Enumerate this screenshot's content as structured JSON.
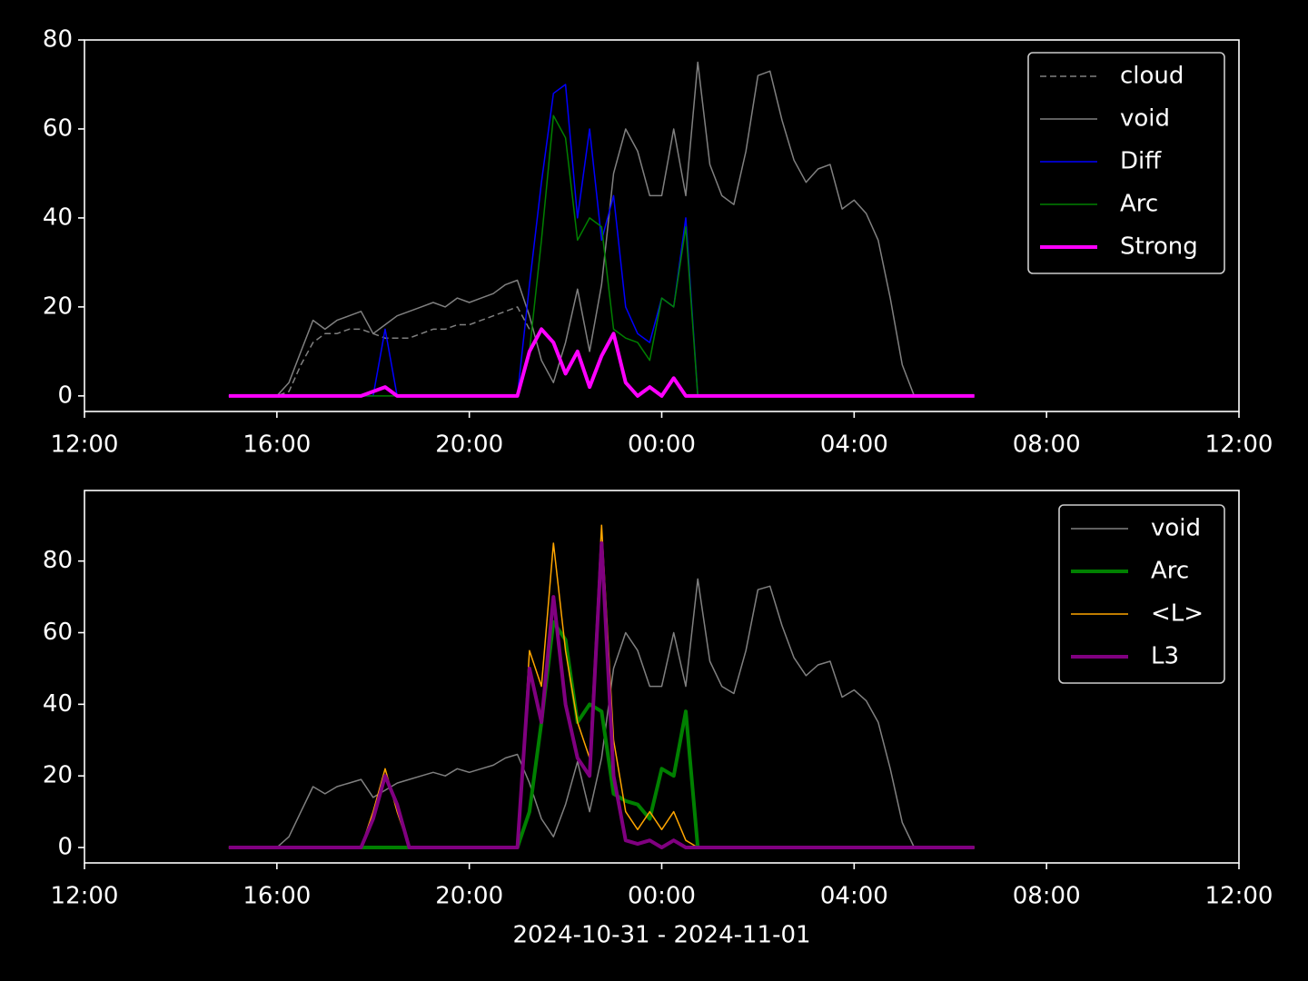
{
  "chart_data": [
    {
      "type": "line",
      "x": [
        3,
        3.25,
        3.5,
        3.75,
        4,
        4.25,
        4.5,
        4.75,
        5,
        5.25,
        5.5,
        5.75,
        6,
        6.25,
        6.5,
        6.75,
        7,
        7.25,
        7.5,
        7.75,
        8,
        8.25,
        8.5,
        8.75,
        9,
        9.25,
        9.5,
        9.75,
        10,
        10.25,
        10.5,
        10.75,
        11,
        11.25,
        11.5,
        11.75,
        12,
        12.25,
        12.5,
        12.75,
        13,
        13.25,
        13.5,
        13.75,
        14,
        14.25,
        14.5,
        14.75,
        15,
        15.25,
        15.5,
        15.75,
        16,
        16.25,
        16.5,
        16.75,
        17,
        17.25,
        17.5,
        17.75,
        18,
        18.25,
        18.5
      ],
      "xlim": [
        0,
        24
      ],
      "xticks": [
        {
          "value": 0,
          "label": "12:00"
        },
        {
          "value": 4,
          "label": "16:00"
        },
        {
          "value": 8,
          "label": "20:00"
        },
        {
          "value": 12,
          "label": "00:00"
        },
        {
          "value": 16,
          "label": "04:00"
        },
        {
          "value": 20,
          "label": "08:00"
        },
        {
          "value": 24,
          "label": "12:00"
        }
      ],
      "ylim": [
        -3.5,
        80
      ],
      "yticks": [
        0,
        20,
        40,
        60,
        80
      ],
      "legend": "upper right",
      "series": [
        {
          "name": "cloud",
          "color": "#808080",
          "dash": true,
          "width": 1.5,
          "values": [
            0,
            0,
            0,
            0,
            0,
            1,
            7,
            12,
            14,
            14,
            15,
            15,
            14,
            13,
            13,
            13,
            14,
            15,
            15,
            16,
            16,
            17,
            18,
            19,
            20,
            15,
            null,
            null,
            null,
            null,
            null,
            null,
            null,
            null,
            null,
            null,
            null,
            null,
            null,
            null,
            null,
            null,
            null,
            null,
            null,
            null,
            null,
            null,
            null,
            null,
            null,
            null,
            null,
            null,
            null,
            null,
            null,
            null,
            null,
            null,
            null,
            null,
            null
          ]
        },
        {
          "name": "void",
          "color": "#808080",
          "width": 1.5,
          "values": [
            0,
            0,
            0,
            0,
            0,
            3,
            10,
            17,
            15,
            17,
            18,
            19,
            14,
            16,
            18,
            19,
            20,
            21,
            20,
            22,
            21,
            22,
            23,
            25,
            26,
            18,
            8,
            3,
            12,
            24,
            10,
            25,
            50,
            60,
            55,
            45,
            45,
            60,
            45,
            75,
            52,
            45,
            43,
            55,
            72,
            73,
            62,
            53,
            48,
            51,
            52,
            42,
            44,
            41,
            35,
            22,
            7,
            0,
            0,
            0,
            0,
            0,
            0
          ]
        },
        {
          "name": "Diff",
          "color": "#0000ff",
          "width": 1.5,
          "values": [
            0,
            0,
            0,
            0,
            0,
            0,
            0,
            0,
            0,
            0,
            0,
            0,
            0,
            15,
            0,
            0,
            0,
            0,
            0,
            0,
            0,
            0,
            0,
            0,
            0,
            25,
            48,
            68,
            70,
            40,
            60,
            35,
            45,
            20,
            14,
            12,
            22,
            20,
            40,
            0,
            0,
            0,
            0,
            0,
            0,
            0,
            0,
            0,
            0,
            0,
            0,
            0,
            0,
            0,
            0,
            0,
            0,
            0,
            0,
            0,
            0,
            0,
            0
          ]
        },
        {
          "name": "Arc",
          "color": "#008000",
          "width": 1.5,
          "values": [
            0,
            0,
            0,
            0,
            0,
            0,
            0,
            0,
            0,
            0,
            0,
            0,
            0,
            0,
            0,
            0,
            0,
            0,
            0,
            0,
            0,
            0,
            0,
            0,
            0,
            10,
            35,
            63,
            58,
            35,
            40,
            38,
            15,
            13,
            12,
            8,
            22,
            20,
            38,
            0,
            0,
            0,
            0,
            0,
            0,
            0,
            0,
            0,
            0,
            0,
            0,
            0,
            0,
            0,
            0,
            0,
            0,
            0,
            0,
            0,
            0,
            0,
            0
          ]
        },
        {
          "name": "Strong",
          "color": "#ff00ff",
          "width": 4,
          "values": [
            0,
            0,
            0,
            0,
            0,
            0,
            0,
            0,
            0,
            0,
            0,
            0,
            1,
            2,
            0,
            0,
            0,
            0,
            0,
            0,
            0,
            0,
            0,
            0,
            0,
            10,
            15,
            12,
            5,
            10,
            2,
            9,
            14,
            3,
            0,
            2,
            0,
            4,
            0,
            0,
            0,
            0,
            0,
            0,
            0,
            0,
            0,
            0,
            0,
            0,
            0,
            0,
            0,
            0,
            0,
            0,
            0,
            0,
            0,
            0,
            0,
            0,
            0
          ]
        }
      ]
    },
    {
      "type": "line",
      "x": [
        3,
        3.25,
        3.5,
        3.75,
        4,
        4.25,
        4.5,
        4.75,
        5,
        5.25,
        5.5,
        5.75,
        6,
        6.25,
        6.5,
        6.75,
        7,
        7.25,
        7.5,
        7.75,
        8,
        8.25,
        8.5,
        8.75,
        9,
        9.25,
        9.5,
        9.75,
        10,
        10.25,
        10.5,
        10.75,
        11,
        11.25,
        11.5,
        11.75,
        12,
        12.25,
        12.5,
        12.75,
        13,
        13.25,
        13.5,
        13.75,
        14,
        14.25,
        14.5,
        14.75,
        15,
        15.25,
        15.5,
        15.75,
        16,
        16.25,
        16.5,
        16.75,
        17,
        17.25,
        17.5,
        17.75,
        18,
        18.25,
        18.5
      ],
      "xlim": [
        0,
        24
      ],
      "xticks": [
        {
          "value": 0,
          "label": "12:00"
        },
        {
          "value": 4,
          "label": "16:00"
        },
        {
          "value": 8,
          "label": "20:00"
        },
        {
          "value": 12,
          "label": "00:00"
        },
        {
          "value": 16,
          "label": "04:00"
        },
        {
          "value": 20,
          "label": "08:00"
        },
        {
          "value": 24,
          "label": "12:00"
        }
      ],
      "xlabel": "2024-10-31 - 2024-11-01",
      "ylim": [
        -4.3,
        99.7
      ],
      "yticks": [
        0,
        20,
        40,
        60,
        80
      ],
      "legend": "upper right",
      "series": [
        {
          "name": "void",
          "color": "#808080",
          "width": 1.5,
          "values": [
            0,
            0,
            0,
            0,
            0,
            3,
            10,
            17,
            15,
            17,
            18,
            19,
            14,
            16,
            18,
            19,
            20,
            21,
            20,
            22,
            21,
            22,
            23,
            25,
            26,
            18,
            8,
            3,
            12,
            24,
            10,
            25,
            50,
            60,
            55,
            45,
            45,
            60,
            45,
            75,
            52,
            45,
            43,
            55,
            72,
            73,
            62,
            53,
            48,
            51,
            52,
            42,
            44,
            41,
            35,
            22,
            7,
            0,
            0,
            0,
            0,
            0,
            0
          ]
        },
        {
          "name": "Arc",
          "color": "#008000",
          "width": 4,
          "values": [
            0,
            0,
            0,
            0,
            0,
            0,
            0,
            0,
            0,
            0,
            0,
            0,
            0,
            0,
            0,
            0,
            0,
            0,
            0,
            0,
            0,
            0,
            0,
            0,
            0,
            10,
            35,
            63,
            58,
            35,
            40,
            38,
            15,
            13,
            12,
            8,
            22,
            20,
            38,
            0,
            0,
            0,
            0,
            0,
            0,
            0,
            0,
            0,
            0,
            0,
            0,
            0,
            0,
            0,
            0,
            0,
            0,
            0,
            0,
            0,
            0,
            0,
            0
          ]
        },
        {
          "name": "<L>",
          "color": "#ffa500",
          "width": 1.5,
          "values": [
            0,
            0,
            0,
            0,
            0,
            0,
            0,
            0,
            0,
            0,
            0,
            0,
            10,
            22,
            10,
            0,
            0,
            0,
            0,
            0,
            0,
            0,
            0,
            0,
            0,
            55,
            45,
            85,
            55,
            35,
            25,
            90,
            30,
            10,
            5,
            10,
            5,
            10,
            2,
            0,
            0,
            0,
            0,
            0,
            0,
            0,
            0,
            0,
            0,
            0,
            0,
            0,
            0,
            0,
            0,
            0,
            0,
            0,
            0,
            0,
            0,
            0,
            0
          ]
        },
        {
          "name": "L3",
          "color": "#800080",
          "width": 4,
          "values": [
            0,
            0,
            0,
            0,
            0,
            0,
            0,
            0,
            0,
            0,
            0,
            0,
            8,
            20,
            12,
            0,
            0,
            0,
            0,
            0,
            0,
            0,
            0,
            0,
            0,
            50,
            35,
            70,
            40,
            25,
            20,
            85,
            20,
            2,
            1,
            2,
            0,
            2,
            0,
            0,
            0,
            0,
            0,
            0,
            0,
            0,
            0,
            0,
            0,
            0,
            0,
            0,
            0,
            0,
            0,
            0,
            0,
            0,
            0,
            0,
            0,
            0,
            0
          ]
        }
      ]
    }
  ]
}
